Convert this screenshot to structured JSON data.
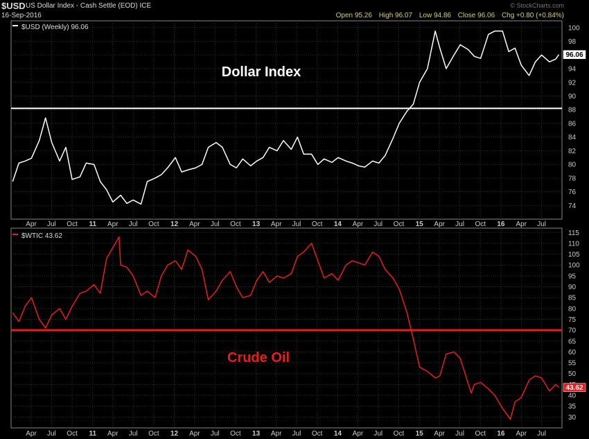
{
  "header": {
    "symbol": "$USD",
    "description": "US Dollar Index - Cash Settle (EOD) ICE",
    "date": "16-Sep-2016",
    "open": "Open 95.26",
    "high": "High 96.07",
    "low": "Low 94.86",
    "close": "Close 96.06",
    "change": "Chg +0.80 (+0.84%)",
    "watermark": "© StockCharts.com"
  },
  "chart_data": [
    {
      "type": "line",
      "legend": "$USD (Weekly) 96.06",
      "annotation": "Dollar Index",
      "line_color": "#ffffff",
      "annotation_color": "#ffffff",
      "last_value_label": "96.06",
      "horizontal_line": 88.2,
      "ylim": [
        72,
        101
      ],
      "yticks": [
        74,
        76,
        78,
        80,
        82,
        84,
        86,
        88,
        90,
        92,
        94,
        96,
        98,
        100
      ],
      "x": [
        "2010-01-08",
        "2010-02-05",
        "2010-03-05",
        "2010-04-02",
        "2010-05-07",
        "2010-06-04",
        "2010-07-02",
        "2010-08-06",
        "2010-09-03",
        "2010-10-01",
        "2010-11-05",
        "2010-12-03",
        "2011-01-07",
        "2011-02-04",
        "2011-03-04",
        "2011-04-01",
        "2011-05-06",
        "2011-06-03",
        "2011-07-01",
        "2011-08-05",
        "2011-09-02",
        "2011-10-07",
        "2011-11-04",
        "2011-12-02",
        "2012-01-06",
        "2012-02-03",
        "2012-03-02",
        "2012-04-06",
        "2012-05-04",
        "2012-06-01",
        "2012-07-06",
        "2012-08-03",
        "2012-09-07",
        "2012-10-05",
        "2012-11-02",
        "2012-12-07",
        "2013-01-04",
        "2013-02-01",
        "2013-03-01",
        "2013-04-05",
        "2013-05-03",
        "2013-06-07",
        "2013-07-05",
        "2013-08-02",
        "2013-09-06",
        "2013-10-04",
        "2013-11-01",
        "2013-12-06",
        "2014-01-03",
        "2014-02-07",
        "2014-03-07",
        "2014-04-04",
        "2014-05-02",
        "2014-06-06",
        "2014-07-04",
        "2014-08-01",
        "2014-09-05",
        "2014-10-03",
        "2014-11-07",
        "2014-12-05",
        "2015-01-02",
        "2015-02-06",
        "2015-03-13",
        "2015-04-03",
        "2015-05-01",
        "2015-06-05",
        "2015-07-03",
        "2015-08-07",
        "2015-09-04",
        "2015-10-02",
        "2015-11-06",
        "2015-12-04",
        "2016-01-08",
        "2016-02-05",
        "2016-03-04",
        "2016-04-01",
        "2016-05-06",
        "2016-06-03",
        "2016-07-01",
        "2016-08-05",
        "2016-09-02",
        "2016-09-16"
      ],
      "y": [
        77.5,
        80.2,
        80.5,
        80.9,
        83.5,
        86.8,
        83.2,
        80.5,
        82.5,
        77.8,
        78.2,
        80.2,
        80.0,
        77.5,
        76.3,
        74.5,
        75.5,
        74.3,
        74.8,
        74.2,
        77.5,
        78.0,
        78.5,
        79.5,
        81.0,
        78.9,
        79.2,
        79.5,
        80.0,
        82.5,
        83.2,
        82.5,
        80.0,
        79.5,
        80.8,
        79.8,
        80.5,
        81.0,
        82.5,
        82.0,
        83.5,
        82.2,
        84.0,
        81.5,
        81.5,
        80.0,
        80.8,
        80.3,
        81.0,
        80.5,
        80.2,
        79.8,
        79.6,
        80.5,
        80.2,
        81.3,
        83.8,
        86.0,
        87.8,
        88.8,
        92.0,
        94.0,
        99.5,
        97.0,
        94.0,
        96.0,
        97.5,
        96.8,
        95.8,
        95.5,
        99.0,
        99.5,
        99.5,
        96.5,
        97.0,
        94.5,
        93.0,
        95.0,
        96.0,
        95.0,
        95.4,
        96.06
      ],
      "x_tick_labels": [
        {
          "date": "2010-04-01",
          "label": "Apr"
        },
        {
          "date": "2010-07-01",
          "label": "Jul"
        },
        {
          "date": "2010-10-01",
          "label": "Oct"
        },
        {
          "date": "2011-01-01",
          "label": "11"
        },
        {
          "date": "2011-04-01",
          "label": "Apr"
        },
        {
          "date": "2011-07-01",
          "label": "Jul"
        },
        {
          "date": "2011-10-01",
          "label": "Oct"
        },
        {
          "date": "2012-01-01",
          "label": "12"
        },
        {
          "date": "2012-04-01",
          "label": "Apr"
        },
        {
          "date": "2012-07-01",
          "label": "Jul"
        },
        {
          "date": "2012-10-01",
          "label": "Oct"
        },
        {
          "date": "2013-01-01",
          "label": "13"
        },
        {
          "date": "2013-04-01",
          "label": "Apr"
        },
        {
          "date": "2013-07-01",
          "label": "Jul"
        },
        {
          "date": "2013-10-01",
          "label": "Oct"
        },
        {
          "date": "2014-01-01",
          "label": "14"
        },
        {
          "date": "2014-04-01",
          "label": "Apr"
        },
        {
          "date": "2014-07-01",
          "label": "Jul"
        },
        {
          "date": "2014-10-01",
          "label": "Oct"
        },
        {
          "date": "2015-01-01",
          "label": "15"
        },
        {
          "date": "2015-04-01",
          "label": "Apr"
        },
        {
          "date": "2015-07-01",
          "label": "Jul"
        },
        {
          "date": "2015-10-01",
          "label": "Oct"
        },
        {
          "date": "2016-01-01",
          "label": "16"
        },
        {
          "date": "2016-04-01",
          "label": "Apr"
        },
        {
          "date": "2016-07-01",
          "label": "Jul"
        }
      ],
      "grid": true
    },
    {
      "type": "line",
      "legend": "$WTIC 43.62",
      "annotation": "Crude Oil",
      "line_color": "#e81e1e",
      "annotation_color": "#e81e1e",
      "last_value_label": "43.62",
      "horizontal_line": 70,
      "ylim": [
        25,
        117
      ],
      "yticks": [
        30,
        35,
        40,
        45,
        50,
        55,
        60,
        65,
        70,
        75,
        80,
        85,
        90,
        95,
        100,
        105,
        110,
        115
      ],
      "x": [
        "2010-01-08",
        "2010-02-05",
        "2010-03-05",
        "2010-04-02",
        "2010-05-07",
        "2010-06-04",
        "2010-07-02",
        "2010-08-06",
        "2010-09-03",
        "2010-10-01",
        "2010-11-05",
        "2010-12-03",
        "2011-01-07",
        "2011-02-04",
        "2011-03-04",
        "2011-04-29",
        "2011-05-06",
        "2011-06-03",
        "2011-07-01",
        "2011-08-05",
        "2011-09-02",
        "2011-10-07",
        "2011-11-04",
        "2011-12-02",
        "2012-01-06",
        "2012-02-03",
        "2012-03-02",
        "2012-04-06",
        "2012-05-04",
        "2012-06-01",
        "2012-07-06",
        "2012-08-03",
        "2012-09-07",
        "2012-10-05",
        "2012-11-02",
        "2012-12-07",
        "2013-01-04",
        "2013-02-01",
        "2013-03-01",
        "2013-04-05",
        "2013-05-03",
        "2013-06-07",
        "2013-07-05",
        "2013-08-02",
        "2013-09-06",
        "2013-10-04",
        "2013-11-01",
        "2013-12-06",
        "2014-01-03",
        "2014-02-07",
        "2014-03-07",
        "2014-04-04",
        "2014-05-02",
        "2014-06-06",
        "2014-07-04",
        "2014-08-01",
        "2014-09-05",
        "2014-10-03",
        "2014-11-07",
        "2014-12-05",
        "2015-01-02",
        "2015-02-06",
        "2015-03-13",
        "2015-04-03",
        "2015-05-01",
        "2015-06-05",
        "2015-07-03",
        "2015-08-21",
        "2015-09-04",
        "2015-10-02",
        "2015-11-06",
        "2015-12-04",
        "2016-01-08",
        "2016-02-12",
        "2016-03-04",
        "2016-04-01",
        "2016-05-06",
        "2016-06-03",
        "2016-07-01",
        "2016-08-05",
        "2016-09-02",
        "2016-09-16"
      ],
      "y": [
        78,
        74,
        81,
        85,
        75,
        71,
        77,
        80,
        75,
        81,
        87,
        88,
        91,
        87,
        103,
        113,
        100,
        99,
        95,
        86,
        88,
        85,
        95,
        100,
        102,
        98,
        107,
        104,
        98,
        84,
        88,
        93,
        97,
        90,
        85,
        86,
        93,
        97,
        92,
        95,
        94,
        96,
        104,
        106,
        110,
        102,
        94,
        96,
        93,
        100,
        102,
        101,
        100,
        106,
        104,
        98,
        94,
        89,
        78,
        66,
        53,
        51,
        48,
        49,
        59,
        60,
        57,
        41,
        45,
        46,
        43,
        40,
        34,
        29,
        37,
        39,
        47,
        49,
        48,
        42,
        45,
        43.62
      ],
      "x_tick_labels": [
        {
          "date": "2010-04-01",
          "label": "Apr"
        },
        {
          "date": "2010-07-01",
          "label": "Jul"
        },
        {
          "date": "2010-10-01",
          "label": "Oct"
        },
        {
          "date": "2011-01-01",
          "label": "11"
        },
        {
          "date": "2011-04-01",
          "label": "Apr"
        },
        {
          "date": "2011-07-01",
          "label": "Jul"
        },
        {
          "date": "2011-10-01",
          "label": "Oct"
        },
        {
          "date": "2012-01-01",
          "label": "12"
        },
        {
          "date": "2012-04-01",
          "label": "Apr"
        },
        {
          "date": "2012-07-01",
          "label": "Jul"
        },
        {
          "date": "2012-10-01",
          "label": "Oct"
        },
        {
          "date": "2013-01-01",
          "label": "13"
        },
        {
          "date": "2013-04-01",
          "label": "Apr"
        },
        {
          "date": "2013-07-01",
          "label": "Jul"
        },
        {
          "date": "2013-10-01",
          "label": "Oct"
        },
        {
          "date": "2014-01-01",
          "label": "14"
        },
        {
          "date": "2014-04-01",
          "label": "Apr"
        },
        {
          "date": "2014-07-01",
          "label": "Jul"
        },
        {
          "date": "2014-10-01",
          "label": "Oct"
        },
        {
          "date": "2015-01-01",
          "label": "15"
        },
        {
          "date": "2015-04-01",
          "label": "Apr"
        },
        {
          "date": "2015-07-01",
          "label": "Jul"
        },
        {
          "date": "2015-10-01",
          "label": "Oct"
        },
        {
          "date": "2016-01-01",
          "label": "16"
        },
        {
          "date": "2016-04-01",
          "label": "Apr"
        },
        {
          "date": "2016-07-01",
          "label": "Jul"
        }
      ],
      "grid": true
    }
  ]
}
